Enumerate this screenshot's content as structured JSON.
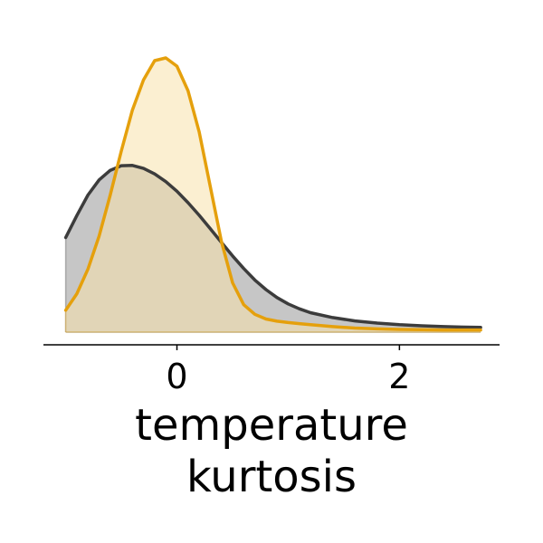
{
  "chart_data": {
    "type": "area",
    "title": "",
    "xlabel": "temperature\nkurtosis",
    "ylabel": "",
    "xlim": [
      -1.2,
      2.9
    ],
    "ylim": [
      0,
      1.0
    ],
    "xticks": [
      0,
      2
    ],
    "xtick_labels": [
      "0",
      "2"
    ],
    "grid": false,
    "legend": "none",
    "x": [
      -1.0,
      -0.9,
      -0.8,
      -0.7,
      -0.6,
      -0.5,
      -0.4,
      -0.3,
      -0.2,
      -0.1,
      0.0,
      0.1,
      0.2,
      0.3,
      0.4,
      0.5,
      0.6,
      0.7,
      0.8,
      0.9,
      1.0,
      1.1,
      1.2,
      1.4,
      1.6,
      1.8,
      2.0,
      2.2,
      2.4,
      2.6,
      2.73
    ],
    "series": [
      {
        "color": "#3c3c3c",
        "fill": "#c6c6c6",
        "values": [
          0.345,
          0.425,
          0.5,
          0.555,
          0.59,
          0.607,
          0.608,
          0.597,
          0.577,
          0.549,
          0.514,
          0.472,
          0.426,
          0.377,
          0.327,
          0.278,
          0.232,
          0.19,
          0.155,
          0.126,
          0.103,
          0.085,
          0.071,
          0.053,
          0.041,
          0.033,
          0.027,
          0.023,
          0.02,
          0.018,
          0.017
        ]
      },
      {
        "color": "#e5a00c",
        "fill": "#f8e2ab",
        "values": [
          0.08,
          0.14,
          0.23,
          0.35,
          0.5,
          0.66,
          0.81,
          0.92,
          0.99,
          1.0,
          0.97,
          0.88,
          0.73,
          0.53,
          0.33,
          0.18,
          0.1,
          0.065,
          0.048,
          0.04,
          0.035,
          0.031,
          0.027,
          0.02,
          0.015,
          0.012,
          0.01,
          0.009,
          0.008,
          0.008,
          0.008
        ]
      }
    ]
  }
}
